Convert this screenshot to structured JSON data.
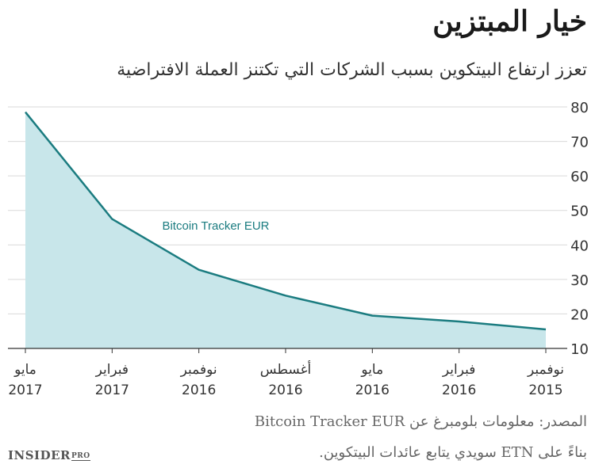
{
  "header": {
    "title": "خيار المبتزين",
    "subtitle": "تعزز ارتفاع البيتكوين بسبب الشركات التي تكتنز العملة الافتراضية"
  },
  "chart_data": {
    "type": "area",
    "title": "خيار المبتزين",
    "subtitle": "تعزز ارتفاع البيتكوين بسبب الشركات التي تكتنز العملة الافتراضية",
    "series": [
      {
        "name": "Bitcoin Tracker EUR",
        "values": [
          78.5,
          47.5,
          32.8,
          25.3,
          19.5,
          17.8,
          15.5
        ],
        "color": "#1b7c80",
        "fill": "#c8e6ea"
      }
    ],
    "x_ticks": [
      {
        "month": "مايو",
        "year": "2017"
      },
      {
        "month": "فبراير",
        "year": "2017"
      },
      {
        "month": "نوفمبر",
        "year": "2016"
      },
      {
        "month": "أغسطس",
        "year": "2016"
      },
      {
        "month": "مايو",
        "year": "2016"
      },
      {
        "month": "فبراير",
        "year": "2016"
      },
      {
        "month": "نوفمبر",
        "year": "2015"
      }
    ],
    "y_ticks": [
      10,
      20,
      30,
      40,
      50,
      60,
      70,
      80
    ],
    "ylim": [
      10,
      80
    ],
    "grid": true,
    "y_axis_side": "right"
  },
  "footer": {
    "source": "المصدر: معلومات بلومبرغ عن Bitcoin Tracker EUR",
    "note": "بناءً على ETN سويدي يتابع عائدات البيتكوين.",
    "brand_main": "INSIDER",
    "brand_sub": "PRO"
  }
}
